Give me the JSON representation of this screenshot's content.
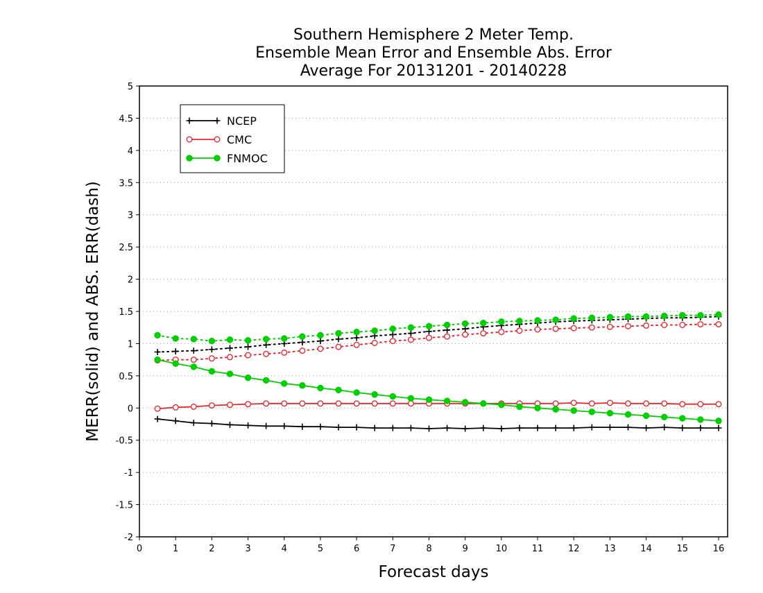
{
  "chart_data": {
    "type": "line",
    "title": [
      "Southern Hemisphere 2 Meter Temp.",
      "Ensemble Mean Error and Ensemble Abs. Error",
      "Average For 20131201 - 20140228"
    ],
    "xlabel": "Forecast days",
    "ylabel": "MERR(solid) and ABS. ERR(dash)",
    "xlim": [
      0,
      16.25
    ],
    "ylim": [
      -2,
      5
    ],
    "xticks": [
      0,
      1,
      2,
      3,
      4,
      5,
      6,
      7,
      8,
      9,
      10,
      11,
      12,
      13,
      14,
      15,
      16
    ],
    "xtick_labels": [
      "0",
      "1",
      "2",
      "3",
      "4",
      "5",
      "6",
      "7",
      "8",
      "9",
      "10",
      "11",
      "12",
      "13",
      "14",
      "15",
      "16"
    ],
    "yticks": [
      -2,
      -1.5,
      -1,
      -0.5,
      0,
      0.5,
      1,
      1.5,
      2,
      2.5,
      3,
      3.5,
      4,
      4.5,
      5
    ],
    "ytick_labels": [
      "-2",
      "-1.5",
      "-1",
      "-0.5",
      "0",
      "0.5",
      "1",
      "1.5",
      "2",
      "2.5",
      "3",
      "3.5",
      "4",
      "4.5",
      "5"
    ],
    "grid": "horizontal dotted",
    "legend_position": "top-left",
    "x": [
      0.5,
      1,
      1.5,
      2,
      2.5,
      3,
      3.5,
      4,
      4.5,
      5,
      5.5,
      6,
      6.5,
      7,
      7.5,
      8,
      8.5,
      9,
      9.5,
      10,
      10.5,
      11,
      11.5,
      12,
      12.5,
      13,
      13.5,
      14,
      14.5,
      15,
      15.5,
      16
    ],
    "series": [
      {
        "name": "NCEP",
        "color": "#000000",
        "marker": "plus",
        "mean_error": [
          -0.17,
          -0.2,
          -0.23,
          -0.24,
          -0.26,
          -0.27,
          -0.28,
          -0.28,
          -0.29,
          -0.29,
          -0.3,
          -0.3,
          -0.31,
          -0.31,
          -0.31,
          -0.32,
          -0.31,
          -0.32,
          -0.31,
          -0.32,
          -0.31,
          -0.31,
          -0.31,
          -0.31,
          -0.3,
          -0.3,
          -0.3,
          -0.31,
          -0.3,
          -0.31,
          -0.31,
          -0.31
        ],
        "abs_error": [
          0.87,
          0.88,
          0.89,
          0.91,
          0.93,
          0.95,
          0.98,
          1.0,
          1.02,
          1.04,
          1.07,
          1.09,
          1.12,
          1.14,
          1.16,
          1.19,
          1.21,
          1.23,
          1.26,
          1.28,
          1.3,
          1.32,
          1.34,
          1.35,
          1.36,
          1.37,
          1.38,
          1.39,
          1.4,
          1.4,
          1.41,
          1.42
        ]
      },
      {
        "name": "CMC",
        "color": "#e8282f",
        "marker": "open-circle",
        "mean_error": [
          -0.01,
          0.01,
          0.02,
          0.04,
          0.05,
          0.06,
          0.07,
          0.07,
          0.07,
          0.07,
          0.07,
          0.07,
          0.07,
          0.07,
          0.07,
          0.07,
          0.07,
          0.07,
          0.07,
          0.07,
          0.07,
          0.07,
          0.07,
          0.08,
          0.07,
          0.08,
          0.07,
          0.07,
          0.07,
          0.06,
          0.06,
          0.06
        ],
        "abs_error": [
          0.74,
          0.75,
          0.75,
          0.77,
          0.79,
          0.82,
          0.84,
          0.86,
          0.89,
          0.92,
          0.95,
          0.98,
          1.01,
          1.04,
          1.06,
          1.09,
          1.11,
          1.14,
          1.16,
          1.18,
          1.2,
          1.22,
          1.23,
          1.24,
          1.25,
          1.26,
          1.27,
          1.28,
          1.29,
          1.29,
          1.3,
          1.3
        ]
      },
      {
        "name": "FNMOC",
        "color": "#00d000",
        "marker": "filled-circle",
        "mean_error": [
          0.75,
          0.69,
          0.64,
          0.57,
          0.53,
          0.47,
          0.43,
          0.38,
          0.35,
          0.31,
          0.28,
          0.24,
          0.21,
          0.18,
          0.15,
          0.13,
          0.11,
          0.09,
          0.07,
          0.05,
          0.02,
          0.0,
          -0.02,
          -0.04,
          -0.06,
          -0.08,
          -0.1,
          -0.12,
          -0.14,
          -0.16,
          -0.18,
          -0.2
        ],
        "abs_error": [
          1.13,
          1.08,
          1.07,
          1.04,
          1.06,
          1.05,
          1.07,
          1.08,
          1.11,
          1.13,
          1.16,
          1.18,
          1.2,
          1.23,
          1.25,
          1.27,
          1.29,
          1.31,
          1.32,
          1.34,
          1.35,
          1.36,
          1.37,
          1.39,
          1.4,
          1.41,
          1.42,
          1.42,
          1.43,
          1.44,
          1.44,
          1.45
        ]
      }
    ]
  }
}
